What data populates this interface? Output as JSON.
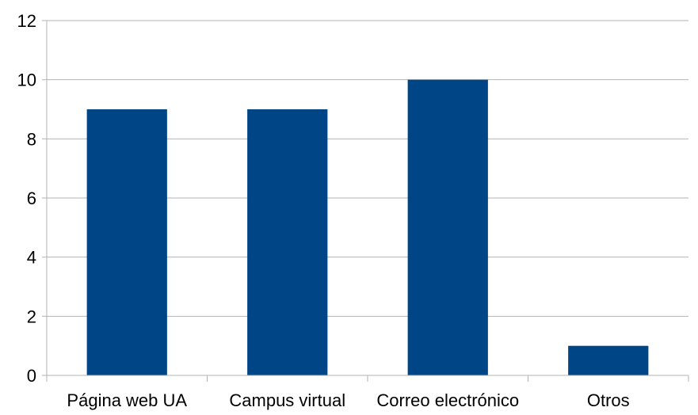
{
  "chart_data": {
    "type": "bar",
    "title": "",
    "xlabel": "",
    "ylabel": "",
    "categories": [
      "Página web UA",
      "Campus virtual",
      "Correo electrónico",
      "Otros"
    ],
    "values": [
      9,
      9,
      10,
      1
    ],
    "ylim": [
      0,
      12
    ],
    "yticks": [
      "0",
      "2",
      "4",
      "6",
      "8",
      "10",
      "12"
    ],
    "grid": true,
    "legend": "none",
    "bar_color": "#004586",
    "grid_color": "#b3b3b3"
  }
}
